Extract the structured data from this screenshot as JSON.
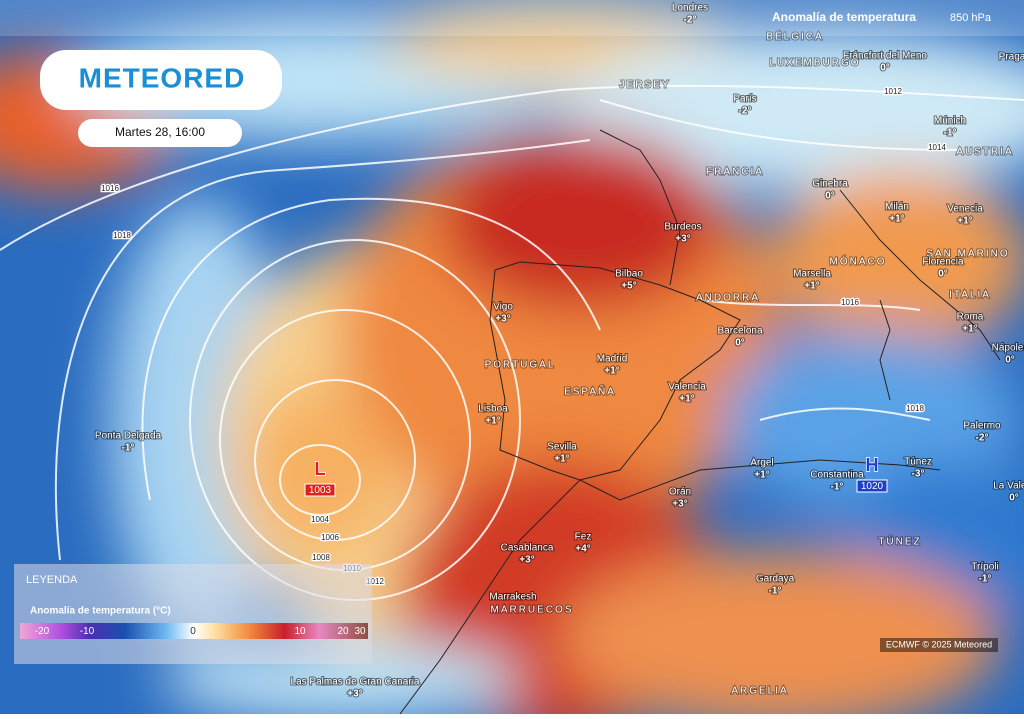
{
  "header": {
    "brand": "METEORED",
    "date": "Martes 28, 16:00",
    "product": "Anomalía de temperatura",
    "level": "850 hPa"
  },
  "cities": [
    {
      "name": "Londres",
      "value": "-2°"
    },
    {
      "name": "Fráncfort del Meno",
      "value": "0°"
    },
    {
      "name": "Praga"
    },
    {
      "name": "París",
      "value": "-2°"
    },
    {
      "name": "Múnich",
      "value": "-1°"
    },
    {
      "name": "Ginebra",
      "value": "0°"
    },
    {
      "name": "Milán",
      "value": "+1°"
    },
    {
      "name": "Venecia",
      "value": "+1°"
    },
    {
      "name": "Burdeos",
      "value": "+3°"
    },
    {
      "name": "Bilbao",
      "value": "+5°"
    },
    {
      "name": "Marsella",
      "value": "+1°"
    },
    {
      "name": "Florencia",
      "value": "0°"
    },
    {
      "name": "Vigo",
      "value": "+3°"
    },
    {
      "name": "Barcelona",
      "value": "0°"
    },
    {
      "name": "Roma",
      "value": "+1°"
    },
    {
      "name": "Nápoles",
      "value": "0°"
    },
    {
      "name": "Madrid",
      "value": "+1°"
    },
    {
      "name": "Valencia",
      "value": "+1°"
    },
    {
      "name": "Lisboa",
      "value": "+1°"
    },
    {
      "name": "Palermo",
      "value": "-2°"
    },
    {
      "name": "Ponta Delgada",
      "value": "-1°"
    },
    {
      "name": "Sevilla",
      "value": "+1°"
    },
    {
      "name": "Argel",
      "value": "+1°"
    },
    {
      "name": "Constantina",
      "value": "-1°"
    },
    {
      "name": "Túnez",
      "value": "-3°"
    },
    {
      "name": "Orán",
      "value": "+3°"
    },
    {
      "name": "La Valeta",
      "value": "0°"
    },
    {
      "name": "Fez",
      "value": "+4°"
    },
    {
      "name": "Casablanca",
      "value": "+3°"
    },
    {
      "name": "Trípoli",
      "value": "-1°"
    },
    {
      "name": "Gardaya",
      "value": "-1°"
    },
    {
      "name": "Marrakesh"
    },
    {
      "name": "Las Palmas de Gran Canaria",
      "value": "+3°"
    }
  ],
  "countries": [
    "BÉLGICA",
    "LUXEMBURGO",
    "JERSEY",
    "AUSTRIA",
    "FRANCIA",
    "ANDORRA",
    "MÓNACO",
    "SAN MARINO",
    "ITALIA",
    "PORTUGAL",
    "ESPAÑA",
    "TÚNEZ",
    "MARRUECOS",
    "ARGELIA"
  ],
  "isobars": [
    1016,
    1018,
    1004,
    1006,
    1008,
    1010,
    1012,
    1012,
    1014,
    1016,
    1018
  ],
  "centers": [
    {
      "symbol": "L",
      "pressure": 1003
    },
    {
      "symbol": "H",
      "pressure": 1020
    }
  ],
  "legend": {
    "title": "LEYENDA",
    "subtitle": "Anomalía de temperatura (°C)",
    "ticks": [
      -20,
      -10,
      0,
      10,
      20,
      30
    ]
  },
  "credit": "ECMWF © 2025 Meteored"
}
